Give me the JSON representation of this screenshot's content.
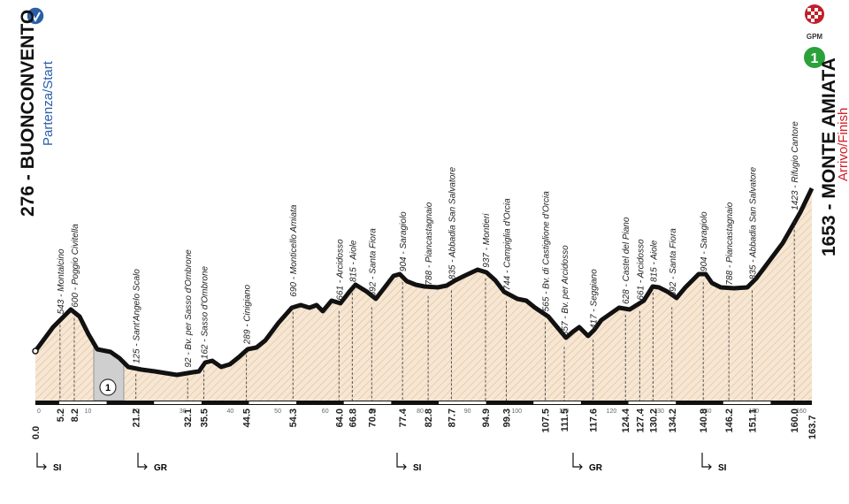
{
  "start": {
    "name": "276 - BUONCONVENTO",
    "subtitle": "Partenza/Start",
    "km": "0.0"
  },
  "finish": {
    "name": "1653 - MONTE AMIATA",
    "subtitle": "Arrivo/Finish",
    "km": "163.7"
  },
  "gpm": {
    "label": "GPM",
    "number": "1"
  },
  "climb_badge": "1",
  "axis_ticks": [
    "0",
    "10",
    "20",
    "30",
    "40",
    "50",
    "60",
    "70",
    "80",
    "90",
    "100",
    "110",
    "120",
    "130",
    "140",
    "150",
    "160"
  ],
  "waypoints": [
    {
      "km": "5.2",
      "label": "543 - Montalcino"
    },
    {
      "km": "8.2",
      "label": "600 - Poggio Civitella"
    },
    {
      "km": "21.2",
      "label": "125 - Sant'Angelo Scalo"
    },
    {
      "km": "32.1",
      "label": "92 - Bv. per Sasso d'Ombrone"
    },
    {
      "km": "35.5",
      "label": "162 - Sasso d'Ombrone"
    },
    {
      "km": "44.5",
      "label": "289 - Cinigiano"
    },
    {
      "km": "54.3",
      "label": "690 - Monticello Amiata"
    },
    {
      "km": "64.0",
      "label": "661 - Arcidosso"
    },
    {
      "km": "66.8",
      "label": "815 - Aiole"
    },
    {
      "km": "70.9",
      "label": "692 - Santa Fiora"
    },
    {
      "km": "77.4",
      "label": "904 - Saragiolo"
    },
    {
      "km": "82.8",
      "label": "788 - Piancastagnaio"
    },
    {
      "km": "87.7",
      "label": "835 - Abbadia San Salvatore"
    },
    {
      "km": "94.9",
      "label": "937 - Montieri"
    },
    {
      "km": "99.3",
      "label": "744 - Campiglia d'Orcia"
    },
    {
      "km": "107.5",
      "label": "565 - Bv. di Castiglione d'Orcia"
    },
    {
      "km": "111.5",
      "label": "357 - Bv. per Arcidosso"
    },
    {
      "km": "117.6",
      "label": "417 - Seggiano"
    },
    {
      "km": "124.4",
      "label": "628 - Castel del Piano"
    },
    {
      "km": "127.4",
      "label": "661 - Arcidosso"
    },
    {
      "km": "130.2",
      "label": "815 - Aiole"
    },
    {
      "km": "134.2",
      "label": "692 - Santa Fiora"
    },
    {
      "km": "140.8",
      "label": "904 - Saragiolo"
    },
    {
      "km": "146.2",
      "label": "788 - Piancastagnaio"
    },
    {
      "km": "151.1",
      "label": "835 - Abbadia San Salvatore"
    },
    {
      "km": "160.0",
      "label": "1423 - Rifugio Cantore"
    }
  ],
  "markers": [
    "SI",
    "GR",
    "SI",
    "GR",
    "SI"
  ]
}
